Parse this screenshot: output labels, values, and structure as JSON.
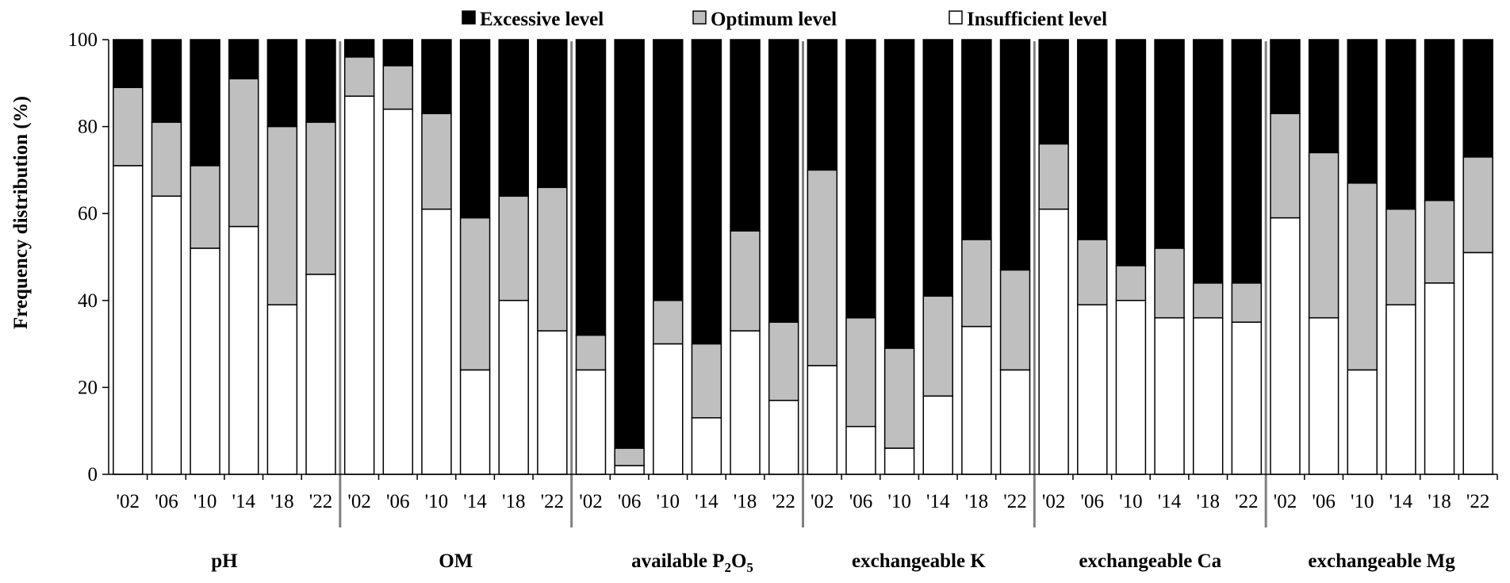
{
  "chart_data": {
    "type": "bar",
    "stacked": true,
    "percent": true,
    "title": "",
    "ylabel": "Frequency distribution (%)",
    "xlabel": "",
    "ylim": [
      0,
      100
    ],
    "yticks": [
      0,
      20,
      40,
      60,
      80,
      100
    ],
    "legend": {
      "position": "top-center",
      "entries": [
        {
          "name": "Excessive level",
          "color": "#000000"
        },
        {
          "name": "Optimum level",
          "color": "#bfbfbf"
        },
        {
          "name": "Insufficient level",
          "color": "#ffffff"
        }
      ]
    },
    "years": [
      "'02",
      "'06",
      "'10",
      "'14",
      "'18",
      "'22"
    ],
    "groups": [
      {
        "label": "pH",
        "insufficient": [
          71,
          64,
          52,
          57,
          39,
          46
        ],
        "optimum": [
          18,
          17,
          19,
          34,
          41,
          35
        ]
      },
      {
        "label": "OM",
        "insufficient": [
          87,
          84,
          61,
          24,
          40,
          33
        ],
        "optimum": [
          9,
          10,
          22,
          35,
          24,
          33
        ]
      },
      {
        "label": "available P2O5",
        "label_base": "available P",
        "label_sub1": "2",
        "label_mid": "O",
        "label_sub2": "5",
        "insufficient": [
          24,
          2,
          30,
          13,
          33,
          17
        ],
        "optimum": [
          8,
          4,
          10,
          17,
          23,
          18
        ]
      },
      {
        "label": "exchangeable K",
        "insufficient": [
          25,
          11,
          6,
          18,
          34,
          24
        ],
        "optimum": [
          45,
          25,
          23,
          23,
          20,
          23
        ]
      },
      {
        "label": "exchangeable Ca",
        "insufficient": [
          61,
          39,
          40,
          36,
          36,
          35
        ],
        "optimum": [
          15,
          15,
          8,
          16,
          8,
          9
        ]
      },
      {
        "label": "exchangeable Mg",
        "insufficient": [
          59,
          36,
          24,
          39,
          44,
          51
        ],
        "optimum": [
          24,
          38,
          43,
          22,
          19,
          22
        ]
      }
    ],
    "colors": {
      "excessive": "#000000",
      "optimum": "#bfbfbf",
      "insufficient": "#ffffff",
      "separator": "#808080"
    }
  }
}
